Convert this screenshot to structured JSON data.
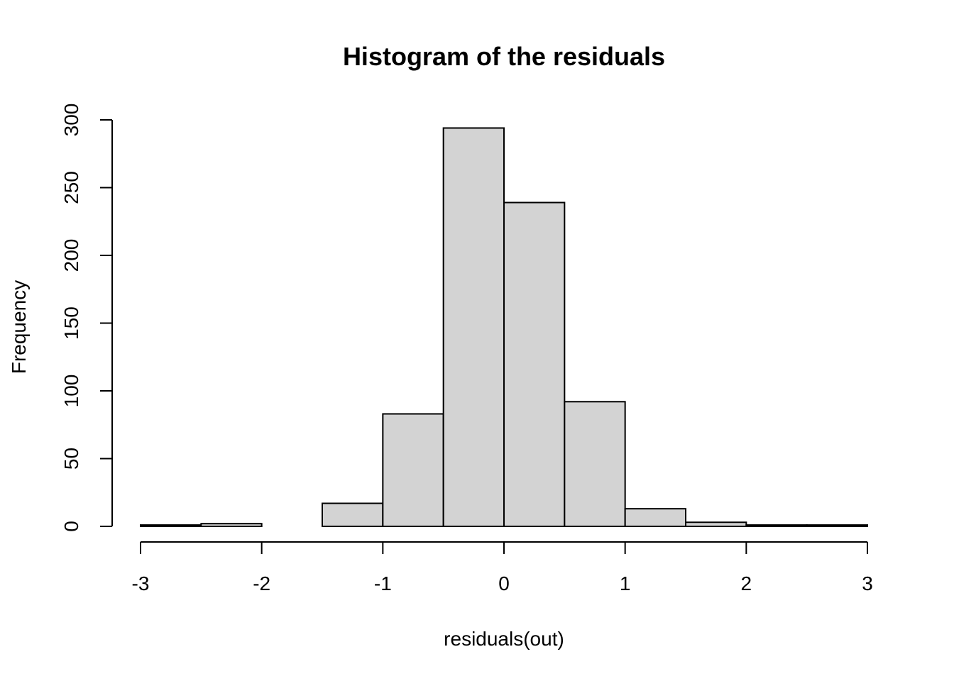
{
  "chart_data": {
    "type": "bar",
    "title": "Histogram of the residuals",
    "xlabel": "residuals(out)",
    "ylabel": "Frequency",
    "bins": [
      {
        "from": -3.0,
        "to": -2.5,
        "count": 1
      },
      {
        "from": -2.5,
        "to": -2.0,
        "count": 2
      },
      {
        "from": -2.0,
        "to": -1.5,
        "count": 0
      },
      {
        "from": -1.5,
        "to": -1.0,
        "count": 17
      },
      {
        "from": -1.0,
        "to": -0.5,
        "count": 83
      },
      {
        "from": -0.5,
        "to": 0.0,
        "count": 294
      },
      {
        "from": 0.0,
        "to": 0.5,
        "count": 239
      },
      {
        "from": 0.5,
        "to": 1.0,
        "count": 92
      },
      {
        "from": 1.0,
        "to": 1.5,
        "count": 13
      },
      {
        "from": 1.5,
        "to": 2.0,
        "count": 3
      },
      {
        "from": 2.0,
        "to": 2.5,
        "count": 1
      },
      {
        "from": 2.5,
        "to": 3.0,
        "count": 1
      }
    ],
    "xlim": [
      -3,
      3
    ],
    "ylim": [
      0,
      300
    ],
    "x_ticks": [
      -3,
      -2,
      -1,
      0,
      1,
      2,
      3
    ],
    "y_ticks": [
      0,
      50,
      100,
      150,
      200,
      250,
      300
    ],
    "bar_fill": "#d3d3d3",
    "bar_stroke": "#000000",
    "grid": false,
    "legend": "none"
  }
}
